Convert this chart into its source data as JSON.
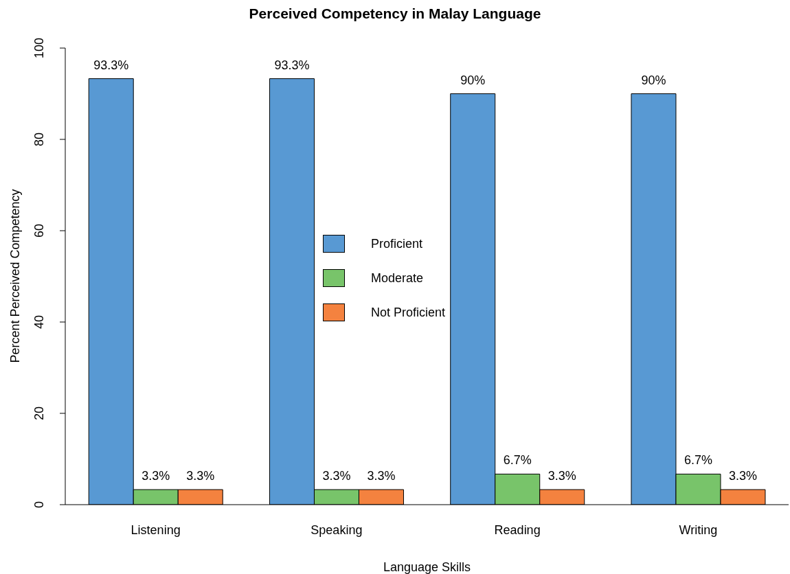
{
  "chart_data": {
    "type": "bar",
    "title": "Perceived Competency in Malay Language",
    "xlabel": "Language Skills",
    "ylabel": "Percent Perceived Competency",
    "categories": [
      "Listening",
      "Speaking",
      "Reading",
      "Writing"
    ],
    "series": [
      {
        "name": "Proficient",
        "color": "#5899d3",
        "values": [
          93.3,
          93.3,
          90,
          90
        ],
        "value_labels": [
          "93.3%",
          "93.3%",
          "90%",
          "90%"
        ]
      },
      {
        "name": "Moderate",
        "color": "#78c46a",
        "values": [
          3.3,
          3.3,
          6.7,
          6.7
        ],
        "value_labels": [
          "3.3%",
          "3.3%",
          "6.7%",
          "6.7%"
        ]
      },
      {
        "name": "Not Proficient",
        "color": "#f4823f",
        "values": [
          3.3,
          3.3,
          3.3,
          3.3
        ],
        "value_labels": [
          "3.3%",
          "3.3%",
          "3.3%",
          "3.3%"
        ]
      }
    ],
    "ylim": [
      0,
      100
    ],
    "yticks": [
      0,
      20,
      40,
      60,
      80,
      100
    ],
    "grid": false,
    "legend": "center"
  }
}
